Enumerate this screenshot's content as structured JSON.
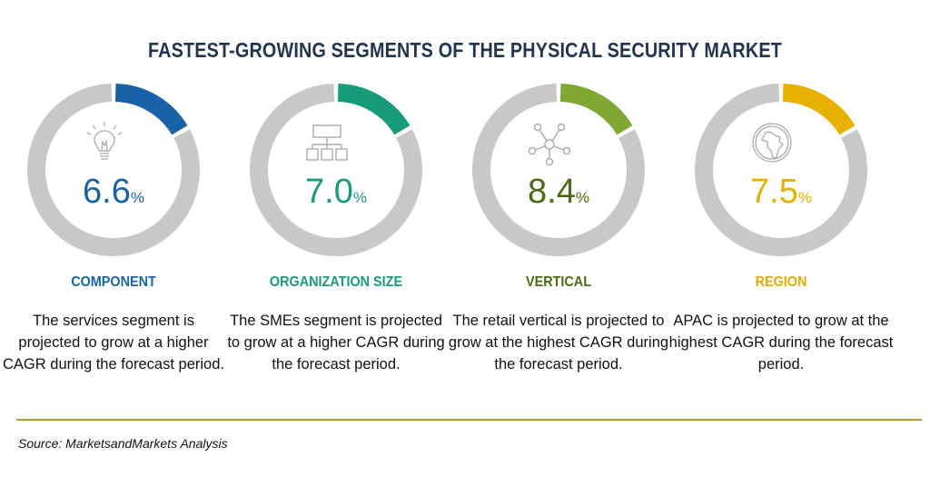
{
  "title": "FASTEST-GROWING SEGMENTS OF THE PHYSICAL SECURITY MARKET",
  "segments": [
    {
      "icon": "lightbulb-icon",
      "value": "6.6",
      "unit": "%",
      "label": "COMPONENT",
      "description": "The services segment is projected to grow at a higher CAGR during the forecast period.",
      "color": "#1a62a8"
    },
    {
      "icon": "org-chart-icon",
      "value": "7.0",
      "unit": "%",
      "label": "ORGANIZATION SIZE",
      "description": "The SMEs segment is projected to grow at a higher CAGR during the forecast period.",
      "color": "#179c7a"
    },
    {
      "icon": "network-icon",
      "value": "8.4",
      "unit": "%",
      "label": "VERTICAL",
      "description": "The retail vertical is projected to grow at the highest CAGR during the forecast period.",
      "color": "#7ea832",
      "value_color": "#4a6a14"
    },
    {
      "icon": "globe-icon",
      "value": "7.5",
      "unit": "%",
      "label": "REGION",
      "description": "APAC is projected to grow at the highest CAGR during the forecast period.",
      "color": "#e8b000"
    }
  ],
  "source": "Source: MarketsandMarkets Analysis"
}
